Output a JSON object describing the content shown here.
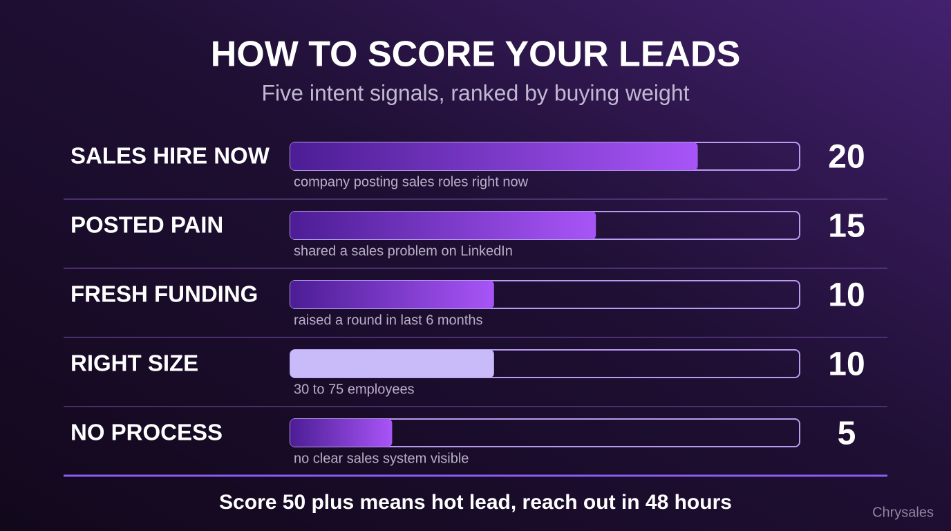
{
  "chart_data": {
    "type": "bar",
    "orientation": "horizontal",
    "title": "HOW TO SCORE YOUR LEADS",
    "subtitle": "Five intent signals, ranked by buying weight",
    "categories": [
      "SALES HIRE NOW",
      "POSTED PAIN",
      "FRESH FUNDING",
      "RIGHT SIZE",
      "NO PROCESS"
    ],
    "descriptions": [
      "company posting sales roles right now",
      "shared a sales problem on LinkedIn",
      "raised a round in last 6 months",
      "30 to 75 employees",
      "no clear sales system visible"
    ],
    "values": [
      20,
      15,
      10,
      10,
      5
    ],
    "colors": [
      [
        "#4c1d95",
        "#a855f7"
      ],
      [
        "#4c1d95",
        "#a855f7"
      ],
      [
        "#4c1d95",
        "#a855f7"
      ],
      [
        "#c9bafa",
        "#c9bafa"
      ],
      [
        "#4c1d95",
        "#a855f7"
      ]
    ],
    "xlim": [
      0,
      25
    ],
    "footnote": "Score 50 plus means hot lead, reach out in 48 hours",
    "brand": "Chrysales"
  }
}
